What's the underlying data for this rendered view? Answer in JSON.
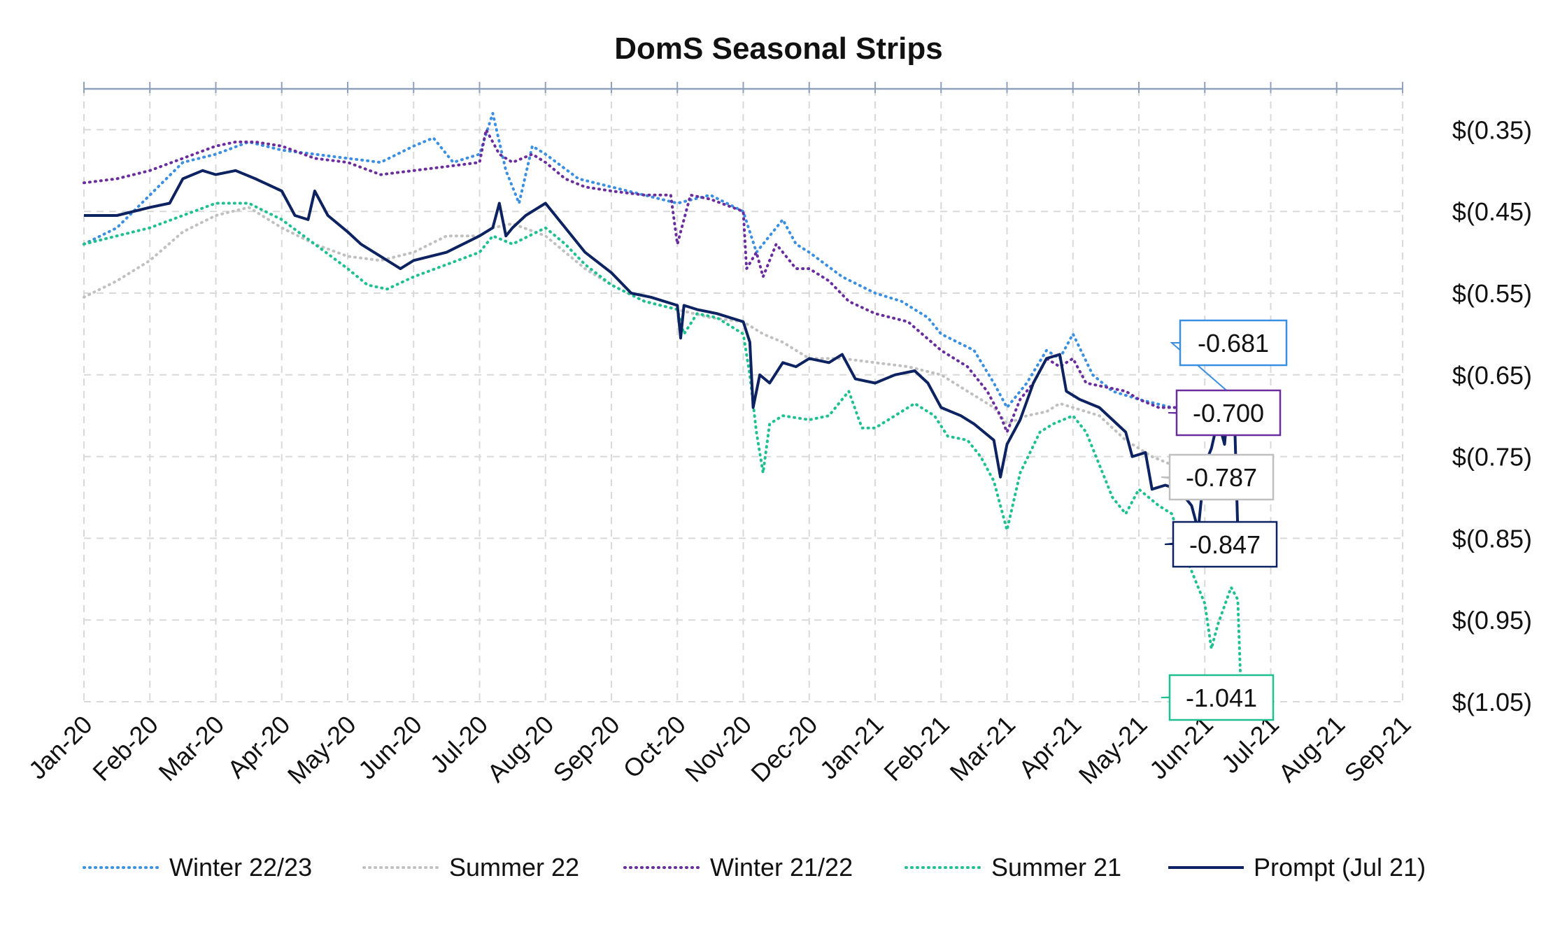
{
  "chart_data": {
    "type": "line",
    "title": "DomS Seasonal Strips",
    "xlabel": "",
    "ylabel": "",
    "x_categories": [
      "Jan-20",
      "Feb-20",
      "Mar-20",
      "Apr-20",
      "May-20",
      "Jun-20",
      "Jul-20",
      "Aug-20",
      "Sep-20",
      "Oct-20",
      "Nov-20",
      "Dec-20",
      "Jan-21",
      "Feb-21",
      "Mar-21",
      "Apr-21",
      "May-21",
      "Jun-21",
      "Jul-21",
      "Aug-21",
      "Sep-21"
    ],
    "y_ticks": [
      -0.35,
      -0.45,
      -0.55,
      -0.65,
      -0.75,
      -0.85,
      -0.95,
      -1.05
    ],
    "y_tick_labels": [
      "$(0.35)",
      "$(0.45)",
      "$(0.55)",
      "$(0.65)",
      "$(0.75)",
      "$(0.85)",
      "$(0.95)",
      "$(1.05)"
    ],
    "ylim": [
      -1.05,
      -0.3
    ],
    "grid": true,
    "legend_position": "bottom",
    "series": [
      {
        "name": "Winter 22/23",
        "color": "#3a8fe0",
        "style": "dotted",
        "points": [
          [
            0,
            -0.49
          ],
          [
            0.5,
            -0.47
          ],
          [
            1,
            -0.43
          ],
          [
            1.5,
            -0.39
          ],
          [
            2,
            -0.38
          ],
          [
            2.5,
            -0.365
          ],
          [
            3,
            -0.375
          ],
          [
            3.5,
            -0.38
          ],
          [
            4,
            -0.385
          ],
          [
            4.5,
            -0.39
          ],
          [
            5,
            -0.37
          ],
          [
            5.3,
            -0.36
          ],
          [
            5.6,
            -0.39
          ],
          [
            6,
            -0.38
          ],
          [
            6.2,
            -0.33
          ],
          [
            6.4,
            -0.4
          ],
          [
            6.6,
            -0.44
          ],
          [
            6.8,
            -0.37
          ],
          [
            7,
            -0.38
          ],
          [
            7.5,
            -0.41
          ],
          [
            8,
            -0.42
          ],
          [
            8.5,
            -0.43
          ],
          [
            9,
            -0.44
          ],
          [
            9.5,
            -0.43
          ],
          [
            10,
            -0.45
          ],
          [
            10.2,
            -0.5
          ],
          [
            10.4,
            -0.48
          ],
          [
            10.6,
            -0.46
          ],
          [
            10.8,
            -0.49
          ],
          [
            11,
            -0.5
          ],
          [
            11.5,
            -0.53
          ],
          [
            12,
            -0.55
          ],
          [
            12.4,
            -0.56
          ],
          [
            12.8,
            -0.58
          ],
          [
            13,
            -0.6
          ],
          [
            13.5,
            -0.62
          ],
          [
            13.8,
            -0.66
          ],
          [
            14,
            -0.69
          ],
          [
            14.3,
            -0.66
          ],
          [
            14.6,
            -0.62
          ],
          [
            14.8,
            -0.63
          ],
          [
            15,
            -0.6
          ],
          [
            15.3,
            -0.65
          ],
          [
            15.6,
            -0.67
          ],
          [
            16,
            -0.68
          ],
          [
            16.5,
            -0.69
          ],
          [
            17,
            -0.69
          ],
          [
            17.2,
            -0.705
          ],
          [
            17.3,
            -0.68
          ],
          [
            17.4,
            -0.695
          ],
          [
            17.5,
            -0.681
          ]
        ],
        "end_label": "-0.681"
      },
      {
        "name": "Summer 22",
        "color": "#c0c0c0",
        "style": "dotted",
        "points": [
          [
            0,
            -0.555
          ],
          [
            0.5,
            -0.535
          ],
          [
            1,
            -0.51
          ],
          [
            1.5,
            -0.475
          ],
          [
            2,
            -0.455
          ],
          [
            2.5,
            -0.445
          ],
          [
            3,
            -0.47
          ],
          [
            3.5,
            -0.49
          ],
          [
            4,
            -0.505
          ],
          [
            4.5,
            -0.51
          ],
          [
            5,
            -0.5
          ],
          [
            5.5,
            -0.48
          ],
          [
            6,
            -0.48
          ],
          [
            6.2,
            -0.47
          ],
          [
            6.5,
            -0.465
          ],
          [
            7,
            -0.48
          ],
          [
            7.3,
            -0.5
          ],
          [
            7.6,
            -0.52
          ],
          [
            8,
            -0.54
          ],
          [
            8.5,
            -0.56
          ],
          [
            9,
            -0.57
          ],
          [
            9.5,
            -0.58
          ],
          [
            10,
            -0.585
          ],
          [
            10.3,
            -0.6
          ],
          [
            10.6,
            -0.61
          ],
          [
            11,
            -0.63
          ],
          [
            11.5,
            -0.63
          ],
          [
            12,
            -0.635
          ],
          [
            12.5,
            -0.64
          ],
          [
            13,
            -0.65
          ],
          [
            13.4,
            -0.67
          ],
          [
            13.8,
            -0.69
          ],
          [
            14,
            -0.71
          ],
          [
            14.3,
            -0.7
          ],
          [
            14.6,
            -0.695
          ],
          [
            14.8,
            -0.685
          ],
          [
            15,
            -0.69
          ],
          [
            15.4,
            -0.7
          ],
          [
            15.8,
            -0.73
          ],
          [
            16.2,
            -0.75
          ],
          [
            16.5,
            -0.76
          ],
          [
            16.8,
            -0.78
          ],
          [
            17,
            -0.785
          ],
          [
            17.3,
            -0.78
          ],
          [
            17.5,
            -0.787
          ]
        ],
        "end_label": "-0.787"
      },
      {
        "name": "Winter 21/22",
        "color": "#6a2d9e",
        "style": "dotted",
        "points": [
          [
            0,
            -0.415
          ],
          [
            0.5,
            -0.41
          ],
          [
            1,
            -0.4
          ],
          [
            1.5,
            -0.385
          ],
          [
            2,
            -0.37
          ],
          [
            2.3,
            -0.365
          ],
          [
            2.6,
            -0.365
          ],
          [
            3,
            -0.37
          ],
          [
            3.5,
            -0.385
          ],
          [
            4,
            -0.39
          ],
          [
            4.5,
            -0.405
          ],
          [
            5,
            -0.4
          ],
          [
            5.5,
            -0.395
          ],
          [
            6,
            -0.39
          ],
          [
            6.1,
            -0.35
          ],
          [
            6.3,
            -0.38
          ],
          [
            6.5,
            -0.39
          ],
          [
            6.8,
            -0.38
          ],
          [
            7,
            -0.39
          ],
          [
            7.3,
            -0.41
          ],
          [
            7.6,
            -0.42
          ],
          [
            8,
            -0.425
          ],
          [
            8.5,
            -0.43
          ],
          [
            8.9,
            -0.43
          ],
          [
            9,
            -0.49
          ],
          [
            9.2,
            -0.43
          ],
          [
            9.5,
            -0.435
          ],
          [
            10,
            -0.45
          ],
          [
            10.05,
            -0.52
          ],
          [
            10.2,
            -0.5
          ],
          [
            10.3,
            -0.53
          ],
          [
            10.5,
            -0.49
          ],
          [
            10.8,
            -0.52
          ],
          [
            11,
            -0.52
          ],
          [
            11.3,
            -0.535
          ],
          [
            11.6,
            -0.56
          ],
          [
            12,
            -0.575
          ],
          [
            12.5,
            -0.585
          ],
          [
            13,
            -0.62
          ],
          [
            13.4,
            -0.64
          ],
          [
            13.7,
            -0.67
          ],
          [
            13.9,
            -0.7
          ],
          [
            14,
            -0.72
          ],
          [
            14.2,
            -0.68
          ],
          [
            14.4,
            -0.66
          ],
          [
            14.6,
            -0.63
          ],
          [
            14.8,
            -0.64
          ],
          [
            15,
            -0.63
          ],
          [
            15.2,
            -0.66
          ],
          [
            15.5,
            -0.665
          ],
          [
            15.8,
            -0.67
          ],
          [
            16,
            -0.68
          ],
          [
            16.3,
            -0.69
          ],
          [
            16.6,
            -0.69
          ],
          [
            17,
            -0.7
          ],
          [
            17.3,
            -0.695
          ],
          [
            17.5,
            -0.7
          ]
        ],
        "end_label": "-0.700"
      },
      {
        "name": "Summer 21",
        "color": "#1ec08f",
        "style": "dotted",
        "points": [
          [
            0,
            -0.49
          ],
          [
            0.5,
            -0.48
          ],
          [
            1,
            -0.47
          ],
          [
            1.5,
            -0.455
          ],
          [
            2,
            -0.44
          ],
          [
            2.5,
            -0.44
          ],
          [
            3,
            -0.46
          ],
          [
            3.5,
            -0.49
          ],
          [
            4,
            -0.52
          ],
          [
            4.3,
            -0.54
          ],
          [
            4.6,
            -0.545
          ],
          [
            5,
            -0.53
          ],
          [
            5.5,
            -0.515
          ],
          [
            6,
            -0.5
          ],
          [
            6.2,
            -0.48
          ],
          [
            6.5,
            -0.49
          ],
          [
            7,
            -0.47
          ],
          [
            7.3,
            -0.49
          ],
          [
            7.6,
            -0.515
          ],
          [
            8,
            -0.54
          ],
          [
            8.5,
            -0.56
          ],
          [
            9,
            -0.57
          ],
          [
            9.1,
            -0.6
          ],
          [
            9.3,
            -0.575
          ],
          [
            9.6,
            -0.58
          ],
          [
            10,
            -0.6
          ],
          [
            10.1,
            -0.65
          ],
          [
            10.2,
            -0.72
          ],
          [
            10.3,
            -0.77
          ],
          [
            10.4,
            -0.71
          ],
          [
            10.6,
            -0.7
          ],
          [
            11,
            -0.705
          ],
          [
            11.3,
            -0.7
          ],
          [
            11.6,
            -0.67
          ],
          [
            11.8,
            -0.715
          ],
          [
            12,
            -0.715
          ],
          [
            12.3,
            -0.7
          ],
          [
            12.6,
            -0.685
          ],
          [
            12.9,
            -0.7
          ],
          [
            13.1,
            -0.725
          ],
          [
            13.4,
            -0.73
          ],
          [
            13.6,
            -0.75
          ],
          [
            13.8,
            -0.78
          ],
          [
            13.9,
            -0.81
          ],
          [
            14,
            -0.84
          ],
          [
            14.2,
            -0.77
          ],
          [
            14.5,
            -0.72
          ],
          [
            14.7,
            -0.71
          ],
          [
            15,
            -0.7
          ],
          [
            15.2,
            -0.72
          ],
          [
            15.4,
            -0.76
          ],
          [
            15.6,
            -0.8
          ],
          [
            15.8,
            -0.82
          ],
          [
            16,
            -0.79
          ],
          [
            16.3,
            -0.81
          ],
          [
            16.5,
            -0.82
          ],
          [
            16.7,
            -0.87
          ],
          [
            16.9,
            -0.91
          ],
          [
            17,
            -0.93
          ],
          [
            17.1,
            -0.985
          ],
          [
            17.2,
            -0.955
          ],
          [
            17.4,
            -0.91
          ],
          [
            17.5,
            -0.925
          ],
          [
            17.55,
            -1.041
          ]
        ],
        "end_label": "-1.041"
      },
      {
        "name": "Prompt (Jul 21)",
        "color": "#0d2260",
        "style": "solid",
        "points": [
          [
            0,
            -0.455
          ],
          [
            0.5,
            -0.455
          ],
          [
            1,
            -0.445
          ],
          [
            1.3,
            -0.44
          ],
          [
            1.5,
            -0.41
          ],
          [
            1.8,
            -0.4
          ],
          [
            2,
            -0.405
          ],
          [
            2.3,
            -0.4
          ],
          [
            2.6,
            -0.41
          ],
          [
            3,
            -0.425
          ],
          [
            3.2,
            -0.455
          ],
          [
            3.4,
            -0.46
          ],
          [
            3.5,
            -0.425
          ],
          [
            3.7,
            -0.455
          ],
          [
            4,
            -0.475
          ],
          [
            4.2,
            -0.49
          ],
          [
            4.5,
            -0.505
          ],
          [
            4.8,
            -0.52
          ],
          [
            5,
            -0.51
          ],
          [
            5.5,
            -0.5
          ],
          [
            6,
            -0.48
          ],
          [
            6.2,
            -0.47
          ],
          [
            6.3,
            -0.44
          ],
          [
            6.4,
            -0.48
          ],
          [
            6.5,
            -0.47
          ],
          [
            6.7,
            -0.455
          ],
          [
            7,
            -0.44
          ],
          [
            7.2,
            -0.46
          ],
          [
            7.4,
            -0.48
          ],
          [
            7.6,
            -0.5
          ],
          [
            8,
            -0.525
          ],
          [
            8.3,
            -0.55
          ],
          [
            8.6,
            -0.555
          ],
          [
            9,
            -0.565
          ],
          [
            9.05,
            -0.605
          ],
          [
            9.1,
            -0.565
          ],
          [
            9.3,
            -0.57
          ],
          [
            9.6,
            -0.575
          ],
          [
            10,
            -0.585
          ],
          [
            10.1,
            -0.61
          ],
          [
            10.15,
            -0.69
          ],
          [
            10.25,
            -0.65
          ],
          [
            10.4,
            -0.66
          ],
          [
            10.6,
            -0.635
          ],
          [
            10.8,
            -0.64
          ],
          [
            11,
            -0.63
          ],
          [
            11.3,
            -0.635
          ],
          [
            11.5,
            -0.625
          ],
          [
            11.7,
            -0.655
          ],
          [
            12,
            -0.66
          ],
          [
            12.3,
            -0.65
          ],
          [
            12.6,
            -0.645
          ],
          [
            12.8,
            -0.66
          ],
          [
            13,
            -0.69
          ],
          [
            13.3,
            -0.7
          ],
          [
            13.5,
            -0.71
          ],
          [
            13.8,
            -0.73
          ],
          [
            13.9,
            -0.775
          ],
          [
            14,
            -0.735
          ],
          [
            14.2,
            -0.705
          ],
          [
            14.4,
            -0.66
          ],
          [
            14.6,
            -0.63
          ],
          [
            14.8,
            -0.625
          ],
          [
            14.9,
            -0.67
          ],
          [
            15.1,
            -0.68
          ],
          [
            15.4,
            -0.69
          ],
          [
            15.6,
            -0.705
          ],
          [
            15.8,
            -0.72
          ],
          [
            15.9,
            -0.75
          ],
          [
            16.1,
            -0.745
          ],
          [
            16.2,
            -0.79
          ],
          [
            16.4,
            -0.785
          ],
          [
            16.6,
            -0.79
          ],
          [
            16.8,
            -0.81
          ],
          [
            16.9,
            -0.84
          ],
          [
            17,
            -0.76
          ],
          [
            17.1,
            -0.74
          ],
          [
            17.2,
            -0.705
          ],
          [
            17.3,
            -0.735
          ],
          [
            17.35,
            -0.69
          ],
          [
            17.45,
            -0.7
          ],
          [
            17.5,
            -0.84
          ],
          [
            17.55,
            -0.847
          ]
        ],
        "end_label": "-0.847"
      }
    ]
  }
}
